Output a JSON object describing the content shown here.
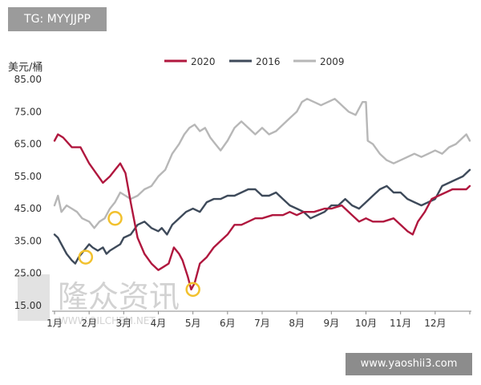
{
  "overlay": {
    "top_left_label": "TG: MYYJJPP",
    "bottom_right_label": "www.yaoshii3.com"
  },
  "watermark": {
    "text": "隆众资讯",
    "subtext": "WWW.OILCHEM.NET"
  },
  "chart_data": {
    "type": "line",
    "ylabel": "美元/桶",
    "ylim": [
      15,
      85
    ],
    "yticks": [
      85.0,
      75.0,
      65.0,
      55.0,
      45.0,
      35.0,
      25.0,
      15.0
    ],
    "ytick_labels": [
      "85.00",
      "75.00",
      "65.00",
      "55.00",
      "45.00",
      "35.00",
      "25.00",
      "15.00"
    ],
    "xlim": [
      0,
      12
    ],
    "xtick_labels": [
      "1月",
      "2月",
      "3月",
      "4月",
      "5月",
      "6月",
      "7月",
      "8月",
      "9月",
      "10月",
      "11月",
      "12月"
    ],
    "grid": false,
    "legend_position": "top",
    "series": [
      {
        "name": "2020",
        "color": "#b0173e",
        "values": [
          [
            0.0,
            66
          ],
          [
            0.1,
            68
          ],
          [
            0.25,
            67
          ],
          [
            0.5,
            64
          ],
          [
            0.75,
            64
          ],
          [
            1.0,
            59
          ],
          [
            1.2,
            56
          ],
          [
            1.4,
            53
          ],
          [
            1.6,
            55
          ],
          [
            1.75,
            57
          ],
          [
            1.9,
            59
          ],
          [
            2.05,
            56
          ],
          [
            2.2,
            47
          ],
          [
            2.4,
            36
          ],
          [
            2.6,
            31
          ],
          [
            2.8,
            28
          ],
          [
            3.0,
            26
          ],
          [
            3.15,
            27
          ],
          [
            3.3,
            28
          ],
          [
            3.45,
            33
          ],
          [
            3.6,
            31
          ],
          [
            3.7,
            29
          ],
          [
            3.85,
            24
          ],
          [
            3.95,
            20
          ],
          [
            4.05,
            22
          ],
          [
            4.2,
            28
          ],
          [
            4.4,
            30
          ],
          [
            4.6,
            33
          ],
          [
            4.8,
            35
          ],
          [
            5.0,
            37
          ],
          [
            5.2,
            40
          ],
          [
            5.4,
            40
          ],
          [
            5.6,
            41
          ],
          [
            5.8,
            42
          ],
          [
            6.0,
            42
          ],
          [
            6.3,
            43
          ],
          [
            6.6,
            43
          ],
          [
            6.8,
            44
          ],
          [
            7.0,
            43
          ],
          [
            7.2,
            44
          ],
          [
            7.5,
            44
          ],
          [
            7.8,
            45
          ],
          [
            8.0,
            45
          ],
          [
            8.3,
            46
          ],
          [
            8.6,
            43
          ],
          [
            8.8,
            41
          ],
          [
            9.0,
            42
          ],
          [
            9.2,
            41
          ],
          [
            9.5,
            41
          ],
          [
            9.8,
            42
          ],
          [
            10.0,
            40
          ],
          [
            10.2,
            38
          ],
          [
            10.35,
            37
          ],
          [
            10.5,
            41
          ],
          [
            10.7,
            44
          ],
          [
            10.9,
            48
          ],
          [
            11.1,
            49
          ],
          [
            11.3,
            50
          ],
          [
            11.5,
            51
          ],
          [
            11.7,
            51
          ],
          [
            11.9,
            51
          ],
          [
            12.0,
            52
          ]
        ]
      },
      {
        "name": "2016",
        "color": "#3e4a5a",
        "values": [
          [
            0.0,
            37
          ],
          [
            0.1,
            36
          ],
          [
            0.2,
            34
          ],
          [
            0.35,
            31
          ],
          [
            0.5,
            29
          ],
          [
            0.6,
            28
          ],
          [
            0.7,
            30
          ],
          [
            0.85,
            32
          ],
          [
            1.0,
            34
          ],
          [
            1.1,
            33
          ],
          [
            1.25,
            32
          ],
          [
            1.4,
            33
          ],
          [
            1.5,
            31
          ],
          [
            1.6,
            32
          ],
          [
            1.75,
            33
          ],
          [
            1.9,
            34
          ],
          [
            2.0,
            36
          ],
          [
            2.2,
            37
          ],
          [
            2.4,
            40
          ],
          [
            2.6,
            41
          ],
          [
            2.8,
            39
          ],
          [
            3.0,
            38
          ],
          [
            3.1,
            39
          ],
          [
            3.25,
            37
          ],
          [
            3.4,
            40
          ],
          [
            3.6,
            42
          ],
          [
            3.8,
            44
          ],
          [
            4.0,
            45
          ],
          [
            4.2,
            44
          ],
          [
            4.4,
            47
          ],
          [
            4.6,
            48
          ],
          [
            4.8,
            48
          ],
          [
            5.0,
            49
          ],
          [
            5.2,
            49
          ],
          [
            5.4,
            50
          ],
          [
            5.6,
            51
          ],
          [
            5.8,
            51
          ],
          [
            6.0,
            49
          ],
          [
            6.2,
            49
          ],
          [
            6.4,
            50
          ],
          [
            6.6,
            48
          ],
          [
            6.8,
            46
          ],
          [
            7.0,
            45
          ],
          [
            7.2,
            44
          ],
          [
            7.4,
            42
          ],
          [
            7.6,
            43
          ],
          [
            7.8,
            44
          ],
          [
            8.0,
            46
          ],
          [
            8.2,
            46
          ],
          [
            8.4,
            48
          ],
          [
            8.6,
            46
          ],
          [
            8.8,
            45
          ],
          [
            9.0,
            47
          ],
          [
            9.2,
            49
          ],
          [
            9.4,
            51
          ],
          [
            9.6,
            52
          ],
          [
            9.8,
            50
          ],
          [
            10.0,
            50
          ],
          [
            10.2,
            48
          ],
          [
            10.4,
            47
          ],
          [
            10.6,
            46
          ],
          [
            10.8,
            47
          ],
          [
            11.0,
            48
          ],
          [
            11.2,
            52
          ],
          [
            11.4,
            53
          ],
          [
            11.6,
            54
          ],
          [
            11.8,
            55
          ],
          [
            12.0,
            57
          ]
        ]
      },
      {
        "name": "2009",
        "color": "#b7b7b7",
        "values": [
          [
            0.0,
            46
          ],
          [
            0.1,
            49
          ],
          [
            0.2,
            44
          ],
          [
            0.35,
            46
          ],
          [
            0.5,
            45
          ],
          [
            0.65,
            44
          ],
          [
            0.8,
            42
          ],
          [
            1.0,
            41
          ],
          [
            1.15,
            39
          ],
          [
            1.3,
            41
          ],
          [
            1.45,
            42
          ],
          [
            1.6,
            45
          ],
          [
            1.75,
            47
          ],
          [
            1.9,
            50
          ],
          [
            2.05,
            49
          ],
          [
            2.2,
            48
          ],
          [
            2.4,
            49
          ],
          [
            2.6,
            51
          ],
          [
            2.8,
            52
          ],
          [
            3.0,
            55
          ],
          [
            3.2,
            57
          ],
          [
            3.4,
            62
          ],
          [
            3.6,
            65
          ],
          [
            3.75,
            68
          ],
          [
            3.9,
            70
          ],
          [
            4.05,
            71
          ],
          [
            4.2,
            69
          ],
          [
            4.35,
            70
          ],
          [
            4.5,
            67
          ],
          [
            4.65,
            65
          ],
          [
            4.8,
            63
          ],
          [
            5.0,
            66
          ],
          [
            5.2,
            70
          ],
          [
            5.4,
            72
          ],
          [
            5.6,
            70
          ],
          [
            5.8,
            68
          ],
          [
            6.0,
            70
          ],
          [
            6.2,
            68
          ],
          [
            6.4,
            69
          ],
          [
            6.6,
            71
          ],
          [
            6.8,
            73
          ],
          [
            7.0,
            75
          ],
          [
            7.15,
            78
          ],
          [
            7.3,
            79
          ],
          [
            7.5,
            78
          ],
          [
            7.7,
            77
          ],
          [
            7.9,
            78
          ],
          [
            8.1,
            79
          ],
          [
            8.3,
            77
          ],
          [
            8.5,
            75
          ],
          [
            8.7,
            74
          ],
          [
            8.9,
            78
          ],
          [
            9.0,
            78
          ],
          [
            9.05,
            66
          ],
          [
            9.2,
            65
          ],
          [
            9.4,
            62
          ],
          [
            9.6,
            60
          ],
          [
            9.8,
            59
          ],
          [
            10.0,
            60
          ],
          [
            10.2,
            61
          ],
          [
            10.4,
            62
          ],
          [
            10.6,
            61
          ],
          [
            10.8,
            62
          ],
          [
            11.0,
            63
          ],
          [
            11.2,
            62
          ],
          [
            11.4,
            64
          ],
          [
            11.6,
            65
          ],
          [
            11.8,
            67
          ],
          [
            11.9,
            68
          ],
          [
            12.0,
            66
          ]
        ]
      }
    ],
    "annotations": [
      {
        "type": "circle",
        "color": "#f2c12e",
        "x": 1.75,
        "y": 42
      },
      {
        "type": "circle",
        "color": "#f2c12e",
        "x": 0.9,
        "y": 30
      },
      {
        "type": "circle",
        "color": "#f2c12e",
        "x": 4.0,
        "y": 20
      }
    ]
  }
}
